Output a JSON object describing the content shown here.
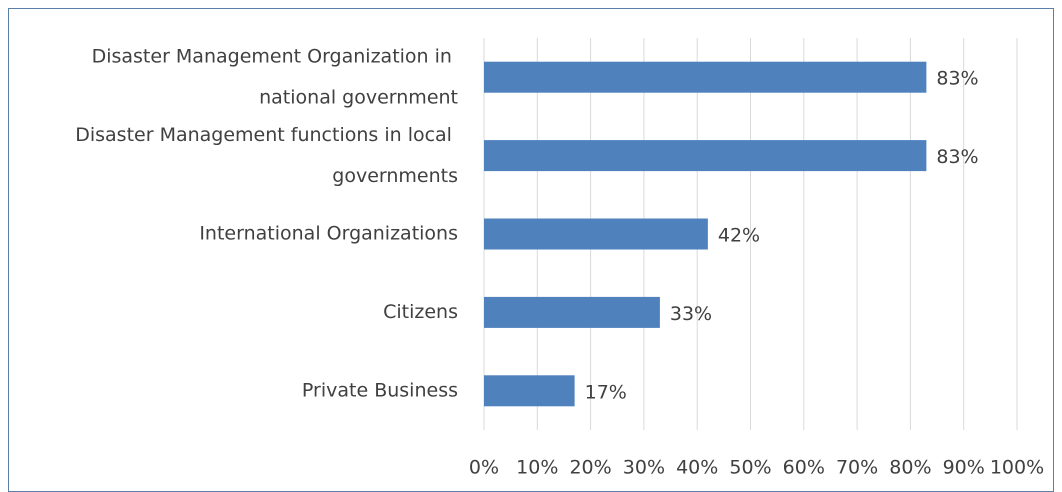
{
  "chart_data": {
    "type": "bar",
    "orientation": "horizontal",
    "categories": [
      "Disaster Management Organization in national government",
      "Disaster Management functions in local governments",
      "International Organizations",
      "Citizens",
      "Private Business"
    ],
    "values": [
      83,
      83,
      42,
      33,
      17
    ],
    "value_labels": [
      "83%",
      "83%",
      "42%",
      "33%",
      "17%"
    ],
    "color": "#4f81bd",
    "xlim": [
      0,
      100
    ],
    "xticks": [
      {
        "value": 0,
        "label": "0%"
      },
      {
        "value": 10,
        "label": "10%"
      },
      {
        "value": 20,
        "label": "20%"
      },
      {
        "value": 30,
        "label": "30%"
      },
      {
        "value": 40,
        "label": "40%"
      },
      {
        "value": 50,
        "label": "50%"
      },
      {
        "value": 60,
        "label": "60%"
      },
      {
        "value": 70,
        "label": "70%"
      },
      {
        "value": 80,
        "label": "80%"
      },
      {
        "value": 90,
        "label": "90%"
      },
      {
        "value": 100,
        "label": "100%"
      }
    ],
    "grid": true
  }
}
